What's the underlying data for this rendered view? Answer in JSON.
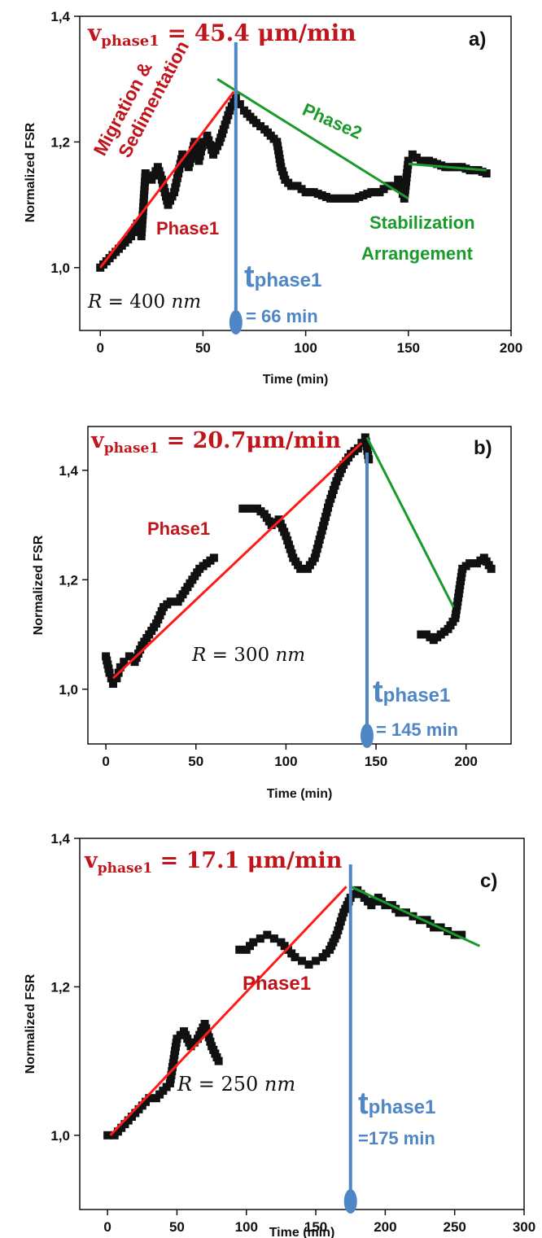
{
  "chart_data": [
    {
      "type": "scatter",
      "panel_label": "a)",
      "xlabel": "Time (min)",
      "ylabel": "Normalized FSR",
      "xlim": [
        -10,
        200
      ],
      "ylim": [
        0.9,
        1.4
      ],
      "xticks": [
        "0",
        "50",
        "100",
        "150",
        "200"
      ],
      "yticks": [
        "1,0",
        "1,2",
        "1,4"
      ],
      "grid": false,
      "colors": {
        "data": "#111111",
        "phase1": "#ff1a1a",
        "phase2": "#1a9a2a",
        "marker": "#4f86c6",
        "text_red": "#c0151b",
        "text_green": "#1a9a2a",
        "text_blue": "#4f86c6"
      },
      "velocity": {
        "prefix": "v",
        "sub": "phase1",
        "value": " = 45.4 μm/min"
      },
      "radius_label": {
        "var": "R",
        "value": " = 400 ",
        "unit": "nm"
      },
      "phase1_label": "Phase1",
      "phase2_label": "Phase2",
      "migration_line1": "Migration &",
      "migration_line2": "Sedimentation",
      "stabilization_line1": "Stabilization",
      "stabilization_line2": "Arrangement",
      "t_phase1": {
        "prefix": "t",
        "sub": "phase1",
        "value": "= 66 min",
        "x": 66
      },
      "fit_lines": [
        {
          "name": "phase1",
          "x": [
            0,
            65
          ],
          "y": [
            1.0,
            1.28
          ]
        },
        {
          "name": "phase2",
          "x": [
            57,
            150
          ],
          "y": [
            1.3,
            1.11
          ]
        },
        {
          "name": "stabilization",
          "x": [
            150,
            188
          ],
          "y": [
            1.165,
            1.155
          ]
        }
      ],
      "series": [
        {
          "x": [
            0,
            3,
            6,
            9,
            12,
            15,
            18,
            20,
            22,
            25,
            28,
            30,
            33,
            36,
            38,
            40,
            43,
            46,
            48,
            50,
            52,
            55,
            58,
            60,
            63,
            66,
            68,
            70,
            73,
            76,
            80,
            83,
            86,
            88,
            90,
            93,
            96,
            100,
            104,
            108,
            112,
            116,
            120,
            124,
            128,
            132,
            136,
            140,
            143,
            145,
            148,
            150,
            152,
            156,
            160,
            164,
            168,
            172,
            176,
            180,
            184,
            188
          ],
          "y": [
            1.0,
            1.01,
            1.02,
            1.03,
            1.04,
            1.05,
            1.07,
            1.05,
            1.15,
            1.14,
            1.16,
            1.14,
            1.1,
            1.12,
            1.15,
            1.18,
            1.16,
            1.2,
            1.17,
            1.2,
            1.21,
            1.18,
            1.2,
            1.22,
            1.25,
            1.27,
            1.26,
            1.25,
            1.24,
            1.23,
            1.22,
            1.21,
            1.2,
            1.16,
            1.14,
            1.13,
            1.13,
            1.12,
            1.12,
            1.115,
            1.11,
            1.11,
            1.11,
            1.11,
            1.115,
            1.12,
            1.12,
            1.13,
            1.13,
            1.14,
            1.11,
            1.17,
            1.18,
            1.17,
            1.17,
            1.165,
            1.16,
            1.16,
            1.16,
            1.155,
            1.155,
            1.15
          ]
        }
      ]
    },
    {
      "type": "scatter",
      "panel_label": "b)",
      "xlabel": "Time (min)",
      "ylabel": "Normalized FSR",
      "xlim": [
        -10,
        225
      ],
      "ylim": [
        0.9,
        1.48
      ],
      "xticks": [
        "0",
        "50",
        "100",
        "150",
        "200"
      ],
      "yticks": [
        "1,0",
        "1,2",
        "1,4"
      ],
      "grid": false,
      "colors": {
        "data": "#111111",
        "phase1": "#ff1a1a",
        "phase2": "#1a9a2a",
        "marker": "#4f86c6",
        "text_red": "#c0151b",
        "text_blue": "#4f86c6"
      },
      "velocity": {
        "prefix": "v",
        "sub": "phase1",
        "value": " = 20.7μm/min"
      },
      "radius_label": {
        "var": "R",
        "value": " = 300 ",
        "unit": "nm"
      },
      "phase1_label": "Phase1",
      "t_phase1": {
        "prefix": "t",
        "sub": "phase1",
        "value": "= 145 min",
        "x": 145
      },
      "fit_lines": [
        {
          "name": "phase1",
          "x": [
            4,
            142
          ],
          "y": [
            1.02,
            1.45
          ]
        },
        {
          "name": "phase2",
          "x": [
            145,
            193
          ],
          "y": [
            1.46,
            1.15
          ]
        }
      ],
      "series": [
        {
          "x": [
            0,
            2,
            4,
            6,
            8,
            10,
            13,
            16,
            20,
            24,
            28,
            32,
            36,
            40,
            44,
            48,
            52,
            56,
            60
          ],
          "y": [
            1.06,
            1.03,
            1.01,
            1.02,
            1.04,
            1.05,
            1.06,
            1.05,
            1.08,
            1.1,
            1.12,
            1.15,
            1.16,
            1.16,
            1.18,
            1.2,
            1.22,
            1.23,
            1.24
          ]
        },
        {
          "x": [
            76,
            80,
            84,
            88,
            92,
            96,
            100,
            104,
            108,
            112,
            116,
            120,
            124,
            128,
            132,
            136,
            140,
            142,
            144,
            146
          ],
          "y": [
            1.33,
            1.33,
            1.33,
            1.32,
            1.3,
            1.31,
            1.28,
            1.24,
            1.22,
            1.22,
            1.24,
            1.29,
            1.34,
            1.38,
            1.41,
            1.43,
            1.44,
            1.45,
            1.46,
            1.42
          ]
        },
        {
          "x": [
            175,
            178,
            182,
            186,
            190,
            194,
            198,
            202,
            206,
            210,
            214
          ],
          "y": [
            1.1,
            1.1,
            1.09,
            1.1,
            1.11,
            1.13,
            1.22,
            1.23,
            1.23,
            1.24,
            1.22
          ]
        }
      ]
    },
    {
      "type": "scatter",
      "panel_label": "c)",
      "xlabel": "Time (min)",
      "ylabel": "Normalized FSR",
      "xlim": [
        -20,
        300
      ],
      "ylim": [
        0.9,
        1.4
      ],
      "xticks": [
        "0",
        "50",
        "100",
        "150",
        "200",
        "250",
        "300"
      ],
      "yticks": [
        "1,0",
        "1,2",
        "1,4"
      ],
      "grid": false,
      "colors": {
        "data": "#111111",
        "phase1": "#ff1a1a",
        "phase2": "#1a9a2a",
        "marker": "#4f86c6",
        "text_red": "#c0151b",
        "text_blue": "#4f86c6"
      },
      "velocity": {
        "prefix": "v",
        "sub": "phase1",
        "value": " = 17.1 μm/min"
      },
      "radius_label": {
        "var": "R",
        "value": " = 250 ",
        "unit": "nm"
      },
      "phase1_label": "Phase1",
      "t_phase1": {
        "prefix": "t",
        "sub": "phase1",
        "value": "=175 min",
        "x": 175
      },
      "fit_lines": [
        {
          "name": "phase1",
          "x": [
            2,
            172
          ],
          "y": [
            1.0,
            1.335
          ]
        },
        {
          "name": "phase2",
          "x": [
            175,
            268
          ],
          "y": [
            1.335,
            1.255
          ]
        }
      ],
      "series": [
        {
          "x": [
            0,
            5,
            10,
            15,
            20,
            25,
            30,
            35,
            40,
            45,
            50,
            55,
            60,
            65,
            70,
            75,
            80
          ],
          "y": [
            1.0,
            1.0,
            1.01,
            1.02,
            1.03,
            1.04,
            1.05,
            1.05,
            1.06,
            1.07,
            1.13,
            1.14,
            1.12,
            1.13,
            1.15,
            1.12,
            1.1
          ]
        },
        {
          "x": [
            95,
            100,
            105,
            110,
            115,
            120,
            125,
            130,
            135,
            140,
            145,
            150,
            155,
            160,
            165,
            170,
            175,
            180,
            185,
            190,
            195,
            200,
            205,
            210,
            215,
            220,
            225,
            230,
            235,
            240,
            245,
            250,
            255
          ],
          "y": [
            1.25,
            1.25,
            1.26,
            1.265,
            1.27,
            1.265,
            1.26,
            1.25,
            1.24,
            1.235,
            1.23,
            1.235,
            1.24,
            1.25,
            1.27,
            1.3,
            1.32,
            1.33,
            1.32,
            1.31,
            1.32,
            1.31,
            1.31,
            1.3,
            1.3,
            1.295,
            1.29,
            1.29,
            1.28,
            1.28,
            1.275,
            1.27,
            1.27
          ]
        }
      ]
    }
  ]
}
